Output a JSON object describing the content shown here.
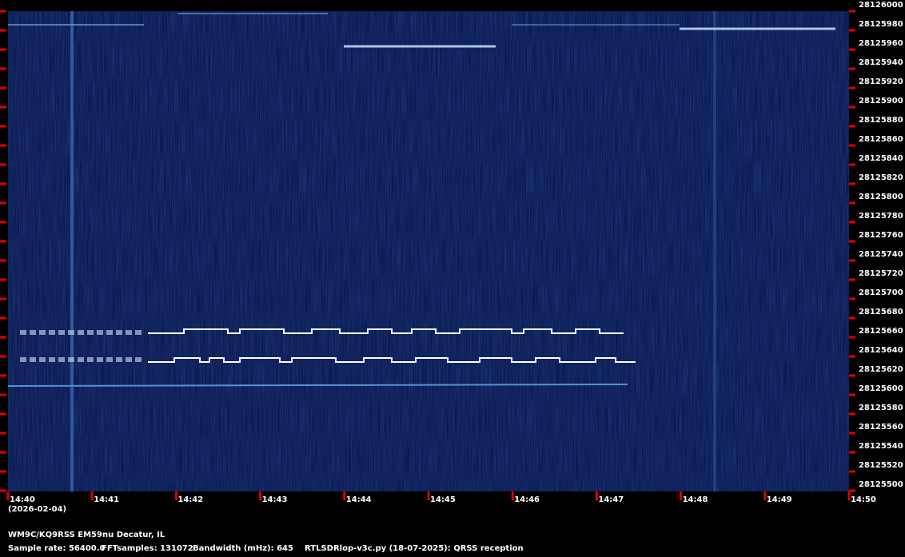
{
  "chart_data": {
    "type": "spectrogram",
    "date": "(2026-02-04)",
    "ylim": [
      28125500,
      28126000
    ],
    "yticks": [
      28126000,
      28125980,
      28125960,
      28125940,
      28125920,
      28125900,
      28125880,
      28125860,
      28125840,
      28125820,
      28125800,
      28125780,
      28125760,
      28125740,
      28125720,
      28125700,
      28125680,
      28125660,
      28125640,
      28125620,
      28125600,
      28125580,
      28125560,
      28125540,
      28125520,
      28125500
    ],
    "xlim": [
      0,
      10
    ],
    "xticks": [
      {
        "value": 0,
        "label": "14:40"
      },
      {
        "value": 1,
        "label": "14:41"
      },
      {
        "value": 2,
        "label": "14:42"
      },
      {
        "value": 3,
        "label": "14:43"
      },
      {
        "value": 4,
        "label": "14:44"
      },
      {
        "value": 5,
        "label": "14:45"
      },
      {
        "value": 6,
        "label": "14:46"
      },
      {
        "value": 7,
        "label": "14:47"
      },
      {
        "value": 8,
        "label": "14:48"
      },
      {
        "value": 9,
        "label": "14:49"
      },
      {
        "value": 10,
        "label": "14:50"
      }
    ],
    "station": "WM9C/KQ9RSS EM59nu Decatur, IL",
    "info": [
      "Sample rate: 56400.0",
      "FFTsamples: 131072",
      "Bandwidth (mHz): 645",
      "RTLSDRlop-v3c.py (18-07-2025): QRSS reception"
    ]
  }
}
